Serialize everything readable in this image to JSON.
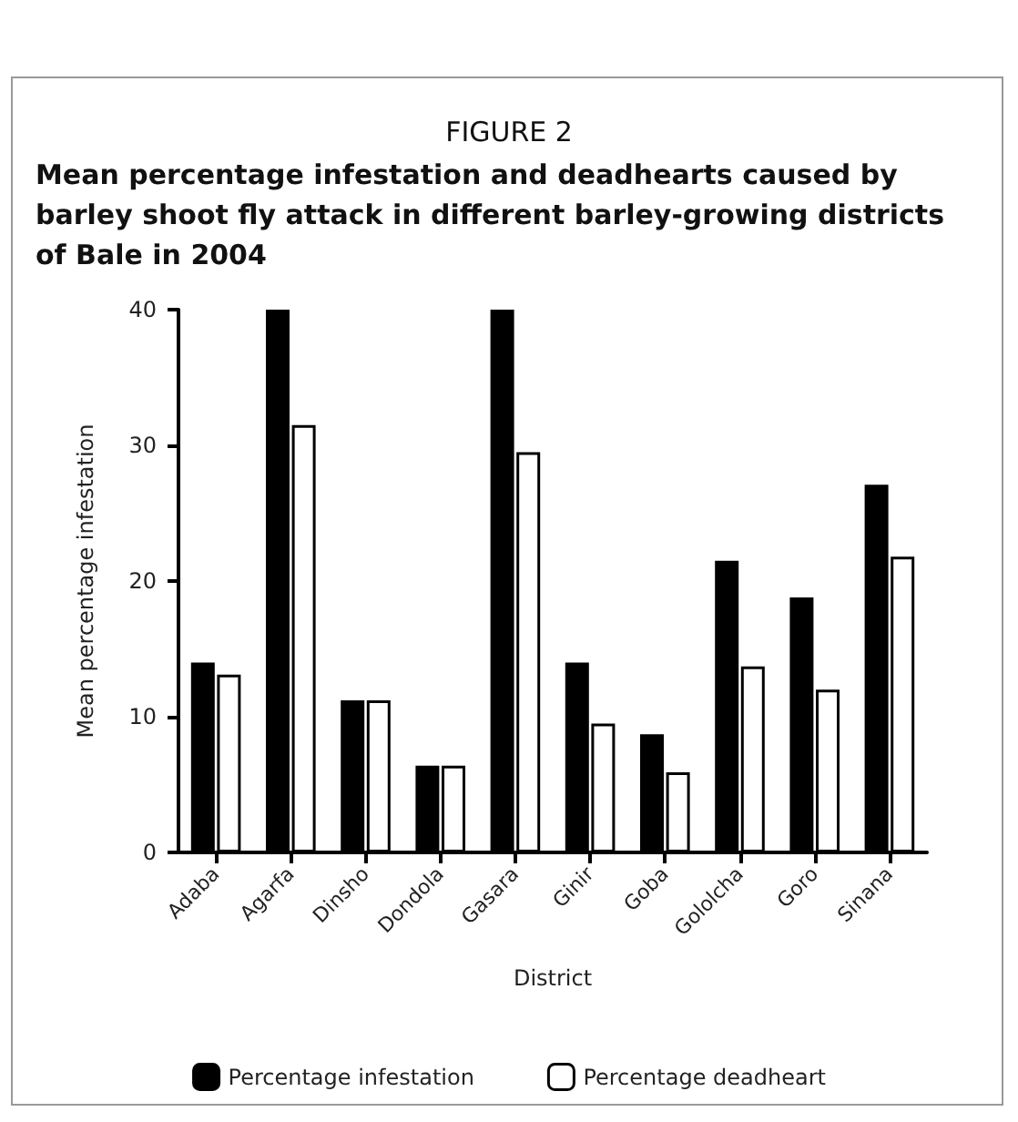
{
  "chart_data": {
    "type": "bar",
    "subtitle": "FIGURE 2",
    "title": "Mean percentage infestation and deadhearts caused by barley shoot fly attack in different barley-growing districts of Bale in 2004",
    "xlabel": "District",
    "ylabel": "Mean percentage infestation",
    "categories": [
      "Adaba",
      "Agarfa",
      "Dinsho",
      "Dondola",
      "Gasara",
      "Ginir",
      "Goba",
      "Gololcha",
      "Goro",
      "Sinana"
    ],
    "series": [
      {
        "name": "Percentage infestation",
        "color": "#000000",
        "values": [
          14.0,
          40.0,
          11.2,
          6.4,
          40.0,
          14.0,
          8.7,
          21.5,
          18.8,
          27.1
        ]
      },
      {
        "name": "Percentage deadheart",
        "color": "#ffffff",
        "values": [
          13.1,
          31.5,
          11.2,
          6.4,
          29.5,
          9.5,
          5.9,
          13.7,
          12.0,
          21.8
        ]
      }
    ],
    "ylim": [
      0,
      40
    ],
    "yticks": [
      0,
      10,
      20,
      30,
      40
    ],
    "grid": false,
    "legend": "bottom"
  }
}
